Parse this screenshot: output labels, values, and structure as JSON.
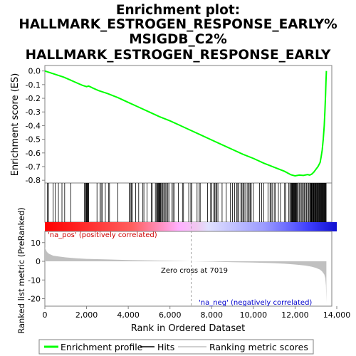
{
  "chart_data": {
    "type": "line",
    "title_lines": [
      "Enrichment plot:",
      "HALLMARK_ESTROGEN_RESPONSE_EARLY%",
      "MSIGDB_C2%",
      "HALLMARK_ESTROGEN_RESPONSE_EARLY"
    ],
    "xlabel": "Rank in Ordered Dataset",
    "xlim": [
      0,
      14000
    ],
    "xticks": [
      0,
      2000,
      4000,
      6000,
      8000,
      10000,
      12000,
      14000
    ],
    "xtick_labels": [
      "0",
      "2,000",
      "4,000",
      "6,000",
      "8,000",
      "10,000",
      "12,000",
      "14,000"
    ],
    "es_panel": {
      "ylabel": "Enrichment score (ES)",
      "ylim": [
        -0.82,
        0.04
      ],
      "yticks": [
        0.0,
        -0.1,
        -0.2,
        -0.3,
        -0.4,
        -0.5,
        -0.6,
        -0.7,
        -0.8
      ],
      "ytick_labels": [
        "0.0",
        "-0.1",
        "-0.2",
        "-0.3",
        "-0.4",
        "-0.5",
        "-0.6",
        "-0.7",
        "-0.8"
      ],
      "line_color": "#00ff00",
      "series": [
        {
          "x": [
            0,
            300,
            600,
            900,
            1200,
            1500,
            1800,
            2000,
            2100,
            2300,
            2600,
            3000,
            3500,
            4000,
            4500,
            5000,
            5500,
            6000,
            6500,
            7000,
            7500,
            8000,
            8500,
            9000,
            9500,
            10000,
            10500,
            11000,
            11500,
            11800,
            12000,
            12200,
            12400,
            12600,
            12700,
            12800,
            12900,
            13000,
            13100,
            13200,
            13250,
            13300,
            13350,
            13400,
            13430,
            13460,
            13480,
            13500
          ],
          "y": [
            0.0,
            -0.015,
            -0.03,
            -0.045,
            -0.065,
            -0.085,
            -0.105,
            -0.115,
            -0.11,
            -0.125,
            -0.145,
            -0.165,
            -0.195,
            -0.23,
            -0.265,
            -0.3,
            -0.335,
            -0.365,
            -0.4,
            -0.435,
            -0.47,
            -0.505,
            -0.54,
            -0.575,
            -0.61,
            -0.64,
            -0.675,
            -0.705,
            -0.735,
            -0.76,
            -0.768,
            -0.762,
            -0.765,
            -0.758,
            -0.762,
            -0.755,
            -0.74,
            -0.72,
            -0.7,
            -0.67,
            -0.63,
            -0.58,
            -0.5,
            -0.4,
            -0.3,
            -0.18,
            -0.08,
            0.0
          ]
        }
      ]
    },
    "hits": [
      120,
      180,
      400,
      500,
      650,
      820,
      950,
      1250,
      1900,
      1950,
      1980,
      2000,
      2020,
      2050,
      2080,
      2100,
      2500,
      2650,
      2700,
      2750,
      2900,
      3050,
      3100,
      3500,
      4050,
      4100,
      4150,
      4200,
      4350,
      4500,
      4700,
      4750,
      4900,
      5100,
      5150,
      5300,
      5350,
      5400,
      5420,
      5450,
      5480,
      5500,
      5530,
      5560,
      5600,
      5650,
      5700,
      5750,
      5800,
      5850,
      5900,
      5950,
      6100,
      6150,
      6200,
      6400,
      6600,
      6650,
      6900,
      7000,
      7050,
      7300,
      7400,
      7450,
      7800,
      7950,
      8000,
      8100,
      8150,
      8200,
      8250,
      8300,
      8500,
      8700,
      8900,
      9000,
      9100,
      9200,
      9250,
      9300,
      9400,
      9450,
      9500,
      9550,
      9600,
      9700,
      9750,
      9800,
      9850,
      9900,
      10000,
      10300,
      10400,
      10500,
      10700,
      10800,
      10850,
      10900,
      11000,
      11050,
      11200,
      11300,
      11500,
      11550,
      11700,
      11750,
      11800,
      11820,
      11850,
      11870,
      11900,
      11920,
      11950,
      11970,
      12000,
      12020,
      12050,
      12080,
      12100,
      12150,
      12200,
      12250,
      12300,
      12350,
      12400,
      12450,
      12500,
      12550,
      12600,
      12650,
      12700,
      12720,
      12750,
      12780,
      12800,
      12830,
      12850,
      12880,
      12900,
      12930,
      12950,
      12980,
      13000,
      13020,
      13050,
      13080,
      13100,
      13120,
      13150,
      13180,
      13200,
      13220,
      13250,
      13280,
      13300,
      13320,
      13350,
      13370,
      13400,
      13420,
      13450,
      13470,
      13490
    ],
    "ranked_metric": {
      "ylabel": "Ranked list metric (PreRanked)",
      "ylim": [
        -24,
        16
      ],
      "yticks": [
        10,
        0,
        -10,
        -20
      ],
      "ytick_labels": [
        "10",
        "0",
        "-10",
        "-20"
      ],
      "x": [
        0,
        100,
        200,
        400,
        700,
        1000,
        1500,
        2000,
        3000,
        4000,
        5000,
        6000,
        7019,
        8000,
        9000,
        10000,
        11000,
        11500,
        12000,
        12500,
        12800,
        13000,
        13200,
        13300,
        13400,
        13450,
        13480,
        13500
      ],
      "y": [
        7.5,
        5.0,
        4.0,
        3.0,
        2.5,
        2.1,
        1.6,
        1.3,
        1.0,
        0.7,
        0.5,
        0.3,
        0.0,
        -0.2,
        -0.45,
        -0.7,
        -1.0,
        -1.3,
        -1.7,
        -2.3,
        -2.9,
        -3.5,
        -4.5,
        -5.5,
        -7.0,
        -9.0,
        -13.0,
        -22.0
      ],
      "fill_color": "#c0c0c0"
    },
    "annotations": {
      "pos_label": "'na_pos' (positively correlated)",
      "neg_label": "'na_neg' (negatively correlated)",
      "zero_cross": "Zero cross at 7019",
      "zero_cross_x": 7019,
      "pos_color": "#cc0000",
      "neg_color": "#0000cc"
    },
    "legend": {
      "placement": "bottom",
      "entries": [
        {
          "label": "Enrichment profile",
          "color": "#00ff00"
        },
        {
          "label": "Hits",
          "color": "#000000"
        },
        {
          "label": "Ranking metric scores",
          "color": "#c0c0c0"
        }
      ]
    },
    "total_rank": 13500
  }
}
